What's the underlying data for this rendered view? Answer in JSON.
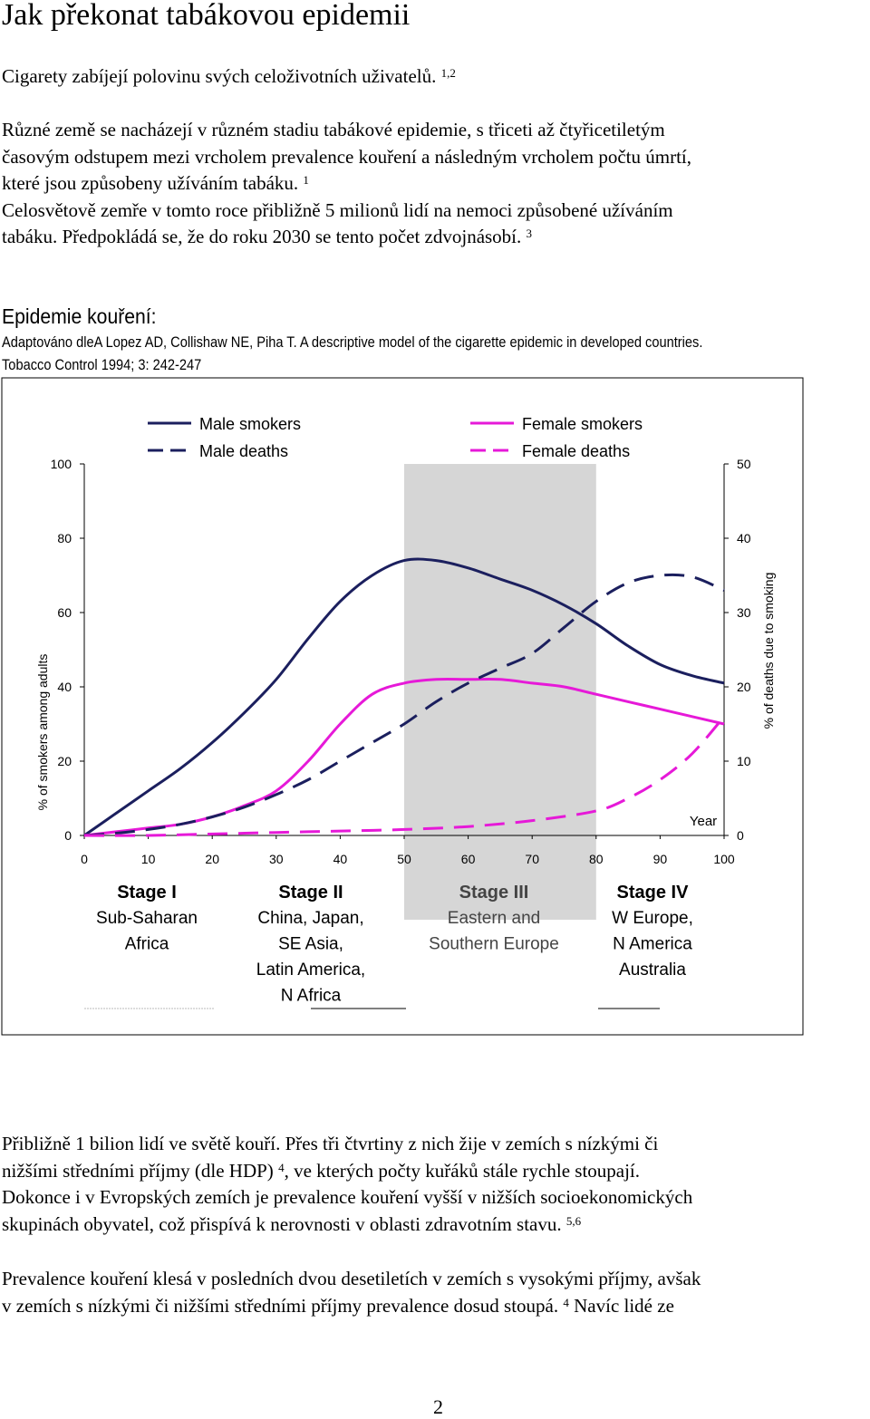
{
  "title": "Jak překonat tabákovou epidemii",
  "intro": {
    "text": "Cigarety zabíjejí polovinu svých celoživotních uživatelů.",
    "ref": "1,2"
  },
  "para1": {
    "line1": "Různé země se nacházejí v různém stadiu tabákové epidemie, s třiceti až čtyřicetiletým",
    "line2": "časovým odstupem mezi vrcholem prevalence kouření a následným vrcholem počtu úmrtí,",
    "line3": "které jsou způsobeny užíváním tabáku.",
    "ref3": "1",
    "line4": "Celosvětově zemře v tomto roce přibližně 5 milionů lidí na nemoci způsobené užíváním",
    "line5": "tabáku. Předpokládá se, že do roku 2030 se tento počet zdvojnásobí.",
    "ref5": "3"
  },
  "epidemic": {
    "heading": "Epidemie kouření:",
    "citation1": "Adaptováno dleA Lopez AD, Collishaw NE, Piha T. A descriptive model of the cigarette epidemic in developed countries.",
    "citation2": "Tobacco Control 1994; 3: 242-247"
  },
  "chart_data": {
    "type": "line",
    "xlabel": "Year",
    "ylabel": "% of smokers among adults",
    "y2label": "% of deaths due to smoking",
    "xlim": [
      0,
      100
    ],
    "ylim": [
      0,
      100
    ],
    "y2lim": [
      0,
      50
    ],
    "xticks": [
      "0",
      "10",
      "20",
      "30",
      "40",
      "50",
      "60",
      "70",
      "80",
      "90",
      "100"
    ],
    "yticks": [
      "0",
      "20",
      "40",
      "60",
      "80",
      "100"
    ],
    "y2ticks": [
      "0",
      "10",
      "20",
      "30",
      "40",
      "50"
    ],
    "shaded_region": [
      50,
      80
    ],
    "legend": [
      "Male smokers",
      "Female smokers",
      "Male deaths",
      "Female deaths"
    ],
    "colors": {
      "male": "#1b1f5e",
      "female": "#e619d8",
      "shade": "#c8c8c8",
      "axis": "#000000"
    },
    "series": [
      {
        "name": "Male smokers",
        "axis": "left",
        "dash": false,
        "color": "#1b1f5e",
        "x": [
          0,
          5,
          10,
          15,
          20,
          25,
          30,
          35,
          40,
          45,
          50,
          55,
          60,
          65,
          70,
          75,
          80,
          85,
          90,
          95,
          100
        ],
        "y": [
          0,
          6,
          12,
          18,
          25,
          33,
          42,
          53,
          63,
          70,
          74,
          74,
          72,
          69,
          66,
          62,
          57,
          51,
          46,
          43,
          41
        ]
      },
      {
        "name": "Female smokers",
        "axis": "left",
        "dash": false,
        "color": "#e619d8",
        "x": [
          0,
          5,
          10,
          15,
          20,
          25,
          30,
          35,
          40,
          45,
          50,
          55,
          60,
          65,
          70,
          75,
          80,
          85,
          90,
          95,
          100
        ],
        "y": [
          0,
          1,
          2,
          3,
          5,
          8,
          12,
          20,
          30,
          38,
          41,
          42,
          42,
          42,
          41,
          40,
          38,
          36,
          34,
          32,
          30
        ]
      },
      {
        "name": "Male deaths",
        "axis": "right",
        "dash": true,
        "color": "#1b1f5e",
        "x": [
          0,
          5,
          10,
          15,
          20,
          25,
          30,
          35,
          40,
          45,
          50,
          55,
          60,
          65,
          70,
          75,
          80,
          85,
          90,
          95,
          100
        ],
        "y": [
          0,
          0.3,
          0.8,
          1.5,
          2.5,
          3.8,
          5.5,
          7.5,
          10,
          12.5,
          15,
          18,
          20.5,
          22.5,
          24.5,
          28,
          31.5,
          34,
          35,
          34.8,
          33
        ]
      },
      {
        "name": "Female deaths",
        "axis": "right",
        "dash": true,
        "color": "#e619d8",
        "x": [
          0,
          10,
          20,
          30,
          40,
          50,
          60,
          70,
          80,
          85,
          90,
          95,
          100
        ],
        "y": [
          0,
          0,
          0.2,
          0.4,
          0.6,
          0.8,
          1.2,
          2,
          3.3,
          5,
          7.5,
          11,
          16
        ]
      }
    ],
    "stages": [
      {
        "title": "Stage I",
        "lines": [
          "Sub-Saharan",
          "Africa"
        ]
      },
      {
        "title": "Stage II",
        "lines": [
          "China, Japan,",
          "SE Asia,",
          "Latin America,",
          "N Africa"
        ]
      },
      {
        "title": "Stage III",
        "lines": [
          "Eastern and",
          "Southern Europe"
        ]
      },
      {
        "title": "Stage IV",
        "lines": [
          "W Europe,",
          "N America",
          "Australia"
        ]
      }
    ]
  },
  "para2": {
    "line1": "Přibližně 1 bilion lidí ve světě kouří.  Přes tři čtvrtiny z nich žije v zemích s nízkými  či",
    "line2a": "nižšími středními  příjmy (dle HDP)",
    "ref2": "4",
    "line2b": ", ve kterých počty kuřáků stále rychle stoupají.",
    "line3": "Dokonce i v  Evropských zemích  je prevalence kouření vyšší v nižších socioekonomických",
    "line4": "skupinách obyvatel, což přispívá k nerovnosti v oblasti  zdravotním stavu.",
    "ref4": "5,6"
  },
  "para3": {
    "line1": "Prevalence kouření klesá v  posledních dvou desetiletích v zemích s vysokými příjmy,  avšak",
    "line2a": "v zemích s nízkými či nižšími středními příjmy prevalence dosud  stoupá.",
    "ref2": "4",
    "line2b": "Navíc  lidé ze"
  },
  "page_number": "2"
}
